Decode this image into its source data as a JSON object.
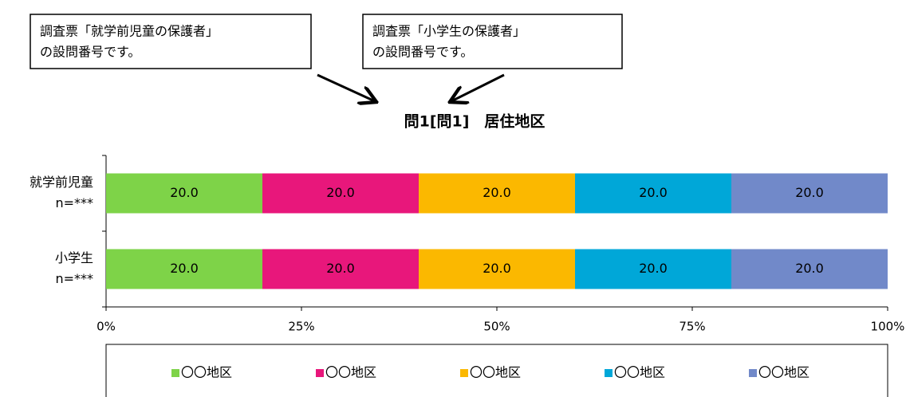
{
  "chart_data": {
    "type": "stacked_barh",
    "title": "問1[問1]　居住地区",
    "annotations": [
      {
        "lines": [
          "調査票「就学前児童の保護者」",
          "の設問番号です。"
        ]
      },
      {
        "lines": [
          "調査票「小学生の保護者」",
          "の設問番号です。"
        ]
      }
    ],
    "categories": [
      "就学前児童",
      "小学生"
    ],
    "category_notes": [
      "n=***",
      "n=***"
    ],
    "series": [
      {
        "name": "〇〇地区",
        "color": "#7ed348",
        "values": [
          20,
          20
        ],
        "value_labels": [
          "20.0",
          "20.0"
        ]
      },
      {
        "name": "〇〇地区",
        "color": "#e8177b",
        "values": [
          20,
          20
        ],
        "value_labels": [
          "20.0",
          "20.0"
        ]
      },
      {
        "name": "〇〇地区",
        "color": "#fbb800",
        "values": [
          20,
          20
        ],
        "value_labels": [
          "20.0",
          "20.0"
        ]
      },
      {
        "name": "〇〇地区",
        "color": "#00a7d8",
        "values": [
          20,
          20
        ],
        "value_labels": [
          "20.0",
          "20.0"
        ]
      },
      {
        "name": "〇〇地区",
        "color": "#7189c9",
        "values": [
          20,
          20
        ],
        "value_labels": [
          "20.0",
          "20.0"
        ]
      }
    ],
    "xlim": [
      0,
      100
    ],
    "xticks": [
      {
        "value": 0,
        "label": "0%"
      },
      {
        "value": 25,
        "label": "25%"
      },
      {
        "value": 50,
        "label": "50%"
      },
      {
        "value": 75,
        "label": "75%"
      },
      {
        "value": 100,
        "label": "100%"
      }
    ],
    "legend": "bottom"
  }
}
